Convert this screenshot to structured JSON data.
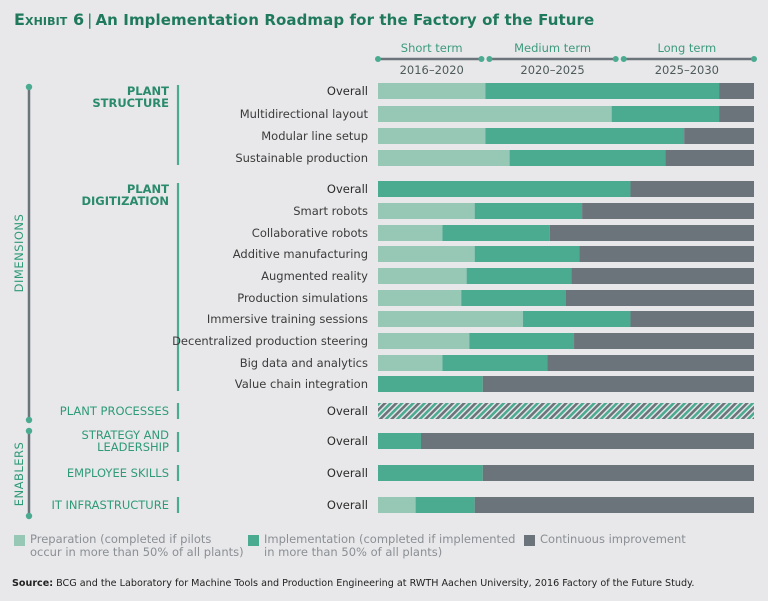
{
  "header": {
    "exhibit_label": "Exhibit 6",
    "separator": "|",
    "title": "An Implementation Roadmap for the Factory of the Future"
  },
  "colors": {
    "preparation": "#97c8b6",
    "implementation": "#4aab91",
    "continuous": "#6b737b",
    "accent": "#1f7a5c",
    "background": "#e8e8ea"
  },
  "axis": {
    "dimensions_label": "DIMENSIONS",
    "enablers_label": "ENABLERS"
  },
  "chart_data": {
    "type": "bar",
    "orientation": "horizontal-stacked-timeline",
    "title": "An Implementation Roadmap for the Factory of the Future",
    "xlim": [
      2016,
      2030
    ],
    "x_unit": "year",
    "periods": [
      {
        "label": "Short term",
        "range": "2016–2020",
        "start": 2016,
        "end": 2020
      },
      {
        "label": "Medium term",
        "range": "2020–2025",
        "start": 2020,
        "end": 2025
      },
      {
        "label": "Long term",
        "range": "2025–2030",
        "start": 2025,
        "end": 2030
      }
    ],
    "series_names": [
      "Preparation",
      "Implementation",
      "Continuous improvement"
    ],
    "legend": [
      {
        "key": "preparation",
        "text": [
          "Preparation (completed if pilots",
          "occur in more than 50% of all plants)"
        ]
      },
      {
        "key": "implementation",
        "text": [
          "Implementation (completed if implemented",
          "in more than 50% of all plants)"
        ]
      },
      {
        "key": "continuous",
        "text": [
          "Continuous improvement"
        ]
      }
    ],
    "legend_position": "bottom",
    "groups": [
      {
        "name": "PLANT STRUCTURE",
        "name_lines": [
          "PLANT",
          "STRUCTURE"
        ],
        "category": "dimension",
        "rows": [
          {
            "label": "Overall",
            "overall": true,
            "prep_end": 2020.0,
            "impl_end": 2028.7
          },
          {
            "label": "Multidirectional layout",
            "prep_end": 2024.7,
            "impl_end": 2028.7
          },
          {
            "label": "Modular line setup",
            "prep_end": 2020.0,
            "impl_end": 2027.4
          },
          {
            "label": "Sustainable production",
            "prep_end": 2020.9,
            "impl_end": 2026.7
          }
        ]
      },
      {
        "name": "PLANT DIGITIZATION",
        "name_lines": [
          "PLANT",
          "DIGITIZATION"
        ],
        "category": "dimension",
        "rows": [
          {
            "label": "Overall",
            "overall": true,
            "prep_end": 2016.0,
            "impl_end": 2025.4
          },
          {
            "label": "Smart robots",
            "prep_end": 2019.6,
            "impl_end": 2023.6
          },
          {
            "label": "Collaborative robots",
            "prep_end": 2018.4,
            "impl_end": 2022.4
          },
          {
            "label": "Additive manufacturing",
            "prep_end": 2019.6,
            "impl_end": 2023.5
          },
          {
            "label": "Augmented reality",
            "prep_end": 2019.3,
            "impl_end": 2023.2
          },
          {
            "label": "Production simulations",
            "prep_end": 2019.1,
            "impl_end": 2023.0
          },
          {
            "label": "Immersive training sessions",
            "prep_end": 2021.4,
            "impl_end": 2025.4
          },
          {
            "label": "Decentralized production steering",
            "prep_end": 2019.4,
            "impl_end": 2023.3
          },
          {
            "label": "Big data and analytics",
            "prep_end": 2018.4,
            "impl_end": 2022.3
          },
          {
            "label": "Value chain integration",
            "prep_end": 2016.0,
            "impl_end": 2019.9
          }
        ]
      },
      {
        "name": "PLANT PROCESSES",
        "name_lines": [
          "PLANT PROCESSES"
        ],
        "category": "dimension",
        "rows": [
          {
            "label": "Overall",
            "overall": true,
            "hatched": true,
            "prep_end": null,
            "impl_end": null,
            "note": "hatched implementation/continuous pattern across full period"
          }
        ]
      },
      {
        "name": "STRATEGY AND LEADERSHIP",
        "name_lines": [
          "STRATEGY AND",
          "LEADERSHIP"
        ],
        "category": "enabler",
        "rows": [
          {
            "label": "Overall",
            "overall": true,
            "prep_end": 2016.0,
            "impl_end": 2017.6
          }
        ]
      },
      {
        "name": "EMPLOYEE SKILLS",
        "name_lines": [
          "EMPLOYEE SKILLS"
        ],
        "category": "enabler",
        "rows": [
          {
            "label": "Overall",
            "overall": true,
            "prep_end": 2016.0,
            "impl_end": 2019.9
          }
        ]
      },
      {
        "name": "IT INFRASTRUCTURE",
        "name_lines": [
          "IT INFRASTRUCTURE"
        ],
        "category": "enabler",
        "rows": [
          {
            "label": "Overall",
            "overall": true,
            "prep_end": 2017.4,
            "impl_end": 2019.6
          }
        ]
      }
    ]
  },
  "source": {
    "prefix": "Source:",
    "text": " BCG and the Laboratory for Machine Tools and Production Engineering at RWTH Aachen University, 2016 Factory of the Future Study."
  }
}
